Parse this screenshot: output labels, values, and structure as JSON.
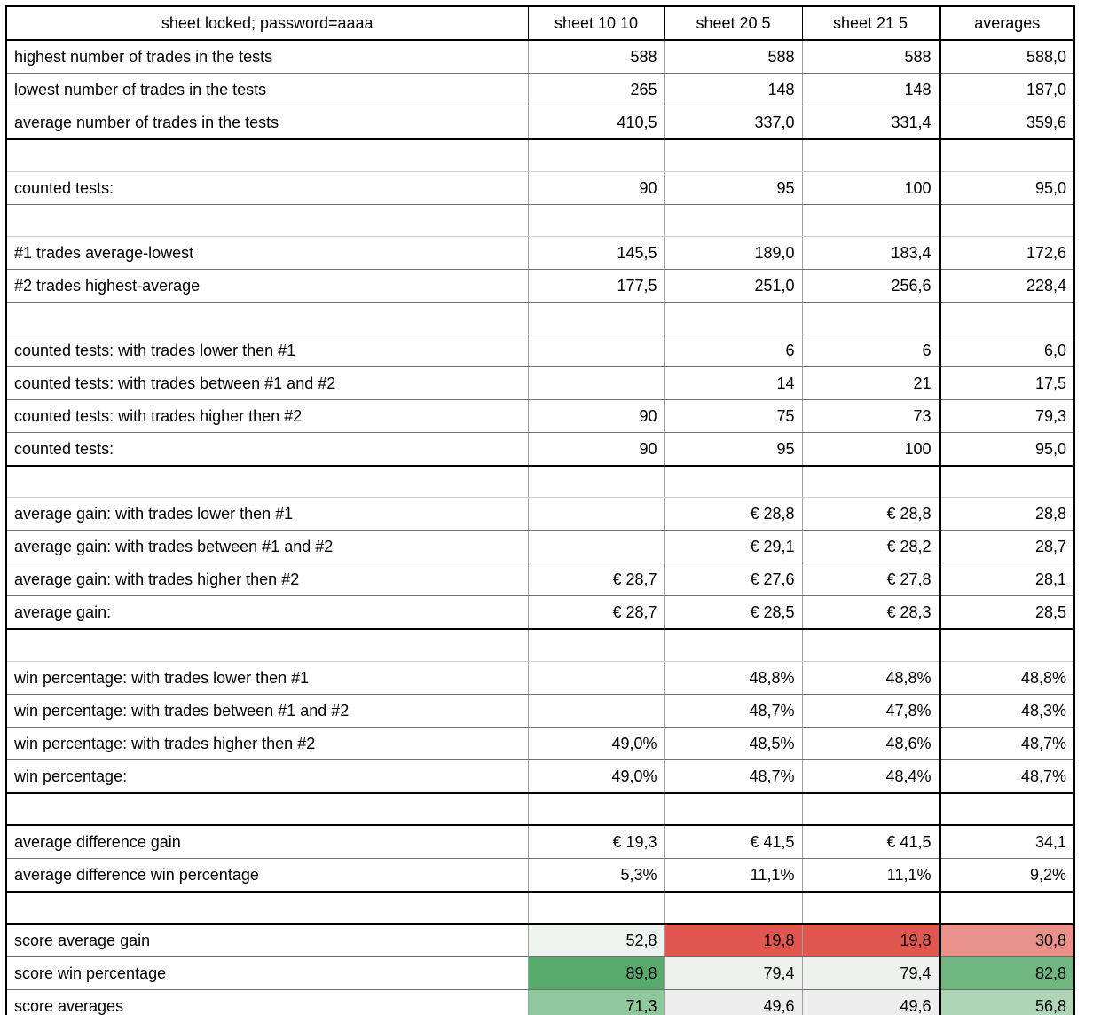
{
  "sheet": {
    "title_cell": "sheet locked; password=aaaa",
    "columns": [
      "sheet 10 10",
      "sheet 20 5",
      "sheet 21 5",
      "averages"
    ],
    "rows": [
      {
        "label": "highest number of trades in the tests",
        "values": [
          "588",
          "588",
          "588",
          "588,0"
        ]
      },
      {
        "label": "lowest number of trades in the tests",
        "values": [
          "265",
          "148",
          "148",
          "187,0"
        ]
      },
      {
        "label": "average number of trades in the tests",
        "values": [
          "410,5",
          "337,0",
          "331,4",
          "359,6"
        ]
      },
      {
        "label": "",
        "values": [
          "",
          "",
          "",
          ""
        ],
        "spacer": true
      },
      {
        "label": "counted tests:",
        "values": [
          "90",
          "95",
          "100",
          "95,0"
        ]
      },
      {
        "label": "",
        "values": [
          "",
          "",
          "",
          ""
        ],
        "spacer": true
      },
      {
        "label": "#1 trades average-lowest",
        "values": [
          "145,5",
          "189,0",
          "183,4",
          "172,6"
        ]
      },
      {
        "label": "#2 trades highest-average",
        "values": [
          "177,5",
          "251,0",
          "256,6",
          "228,4"
        ]
      },
      {
        "label": "",
        "values": [
          "",
          "",
          "",
          ""
        ],
        "spacer": true
      },
      {
        "label": "counted tests: with trades lower then #1",
        "values": [
          "",
          "6",
          "6",
          "6,0"
        ]
      },
      {
        "label": "counted tests: with trades between #1 and #2",
        "values": [
          "",
          "14",
          "21",
          "17,5"
        ]
      },
      {
        "label": "counted tests: with trades higher then #2",
        "values": [
          "90",
          "75",
          "73",
          "79,3"
        ]
      },
      {
        "label": "counted tests:",
        "values": [
          "90",
          "95",
          "100",
          "95,0"
        ]
      },
      {
        "label": "",
        "values": [
          "",
          "",
          "",
          ""
        ],
        "spacer": true
      },
      {
        "label": "average gain: with trades lower then #1",
        "values": [
          "",
          "€ 28,8",
          "€ 28,8",
          "28,8"
        ]
      },
      {
        "label": "average gain: with trades between #1 and #2",
        "values": [
          "",
          "€ 29,1",
          "€ 28,2",
          "28,7"
        ]
      },
      {
        "label": "average gain: with trades higher then #2",
        "values": [
          "€ 28,7",
          "€ 27,6",
          "€ 27,8",
          "28,1"
        ]
      },
      {
        "label": "average gain:",
        "values": [
          "€ 28,7",
          "€ 28,5",
          "€ 28,3",
          "28,5"
        ]
      },
      {
        "label": "",
        "values": [
          "",
          "",
          "",
          ""
        ],
        "spacer": true
      },
      {
        "label": "win percentage: with trades lower then #1",
        "values": [
          "",
          "48,8%",
          "48,8%",
          "48,8%"
        ]
      },
      {
        "label": "win percentage: with trades between #1 and #2",
        "values": [
          "",
          "48,7%",
          "47,8%",
          "48,3%"
        ]
      },
      {
        "label": "win percentage: with trades higher then #2",
        "values": [
          "49,0%",
          "48,5%",
          "48,6%",
          "48,7%"
        ]
      },
      {
        "label": "win percentage:",
        "values": [
          "49,0%",
          "48,7%",
          "48,4%",
          "48,7%"
        ]
      },
      {
        "label": "",
        "values": [
          "",
          "",
          "",
          ""
        ],
        "spacer": true
      },
      {
        "label": "average difference gain",
        "values": [
          "€ 19,3",
          "€ 41,5",
          "€ 41,5",
          "34,1"
        ]
      },
      {
        "label": "average difference win percentage",
        "values": [
          "5,3%",
          "11,1%",
          "11,1%",
          "9,2%"
        ]
      },
      {
        "label": "",
        "values": [
          "",
          "",
          "",
          ""
        ],
        "spacer": true
      },
      {
        "label": "score average gain",
        "values": [
          "52,8",
          "19,8",
          "19,8",
          "30,8"
        ],
        "cell_colors": [
          "#edf3ee",
          "#e1574f",
          "#e1574f",
          "#e8928b"
        ]
      },
      {
        "label": "score win percentage",
        "values": [
          "89,8",
          "79,4",
          "79,4",
          "82,8"
        ],
        "cell_colors": [
          "#57a96c",
          "#eef0ee",
          "#eef0ee",
          "#6fb680"
        ]
      },
      {
        "label": "score averages",
        "values": [
          "71,3",
          "49,6",
          "49,6",
          "56,8"
        ],
        "cell_colors": [
          "#8fc89c",
          "#ededed",
          "#ededed",
          "#aed6b6"
        ]
      },
      {
        "label": "",
        "values": [
          "",
          "",
          "",
          ""
        ],
        "spacer": true
      }
    ]
  }
}
